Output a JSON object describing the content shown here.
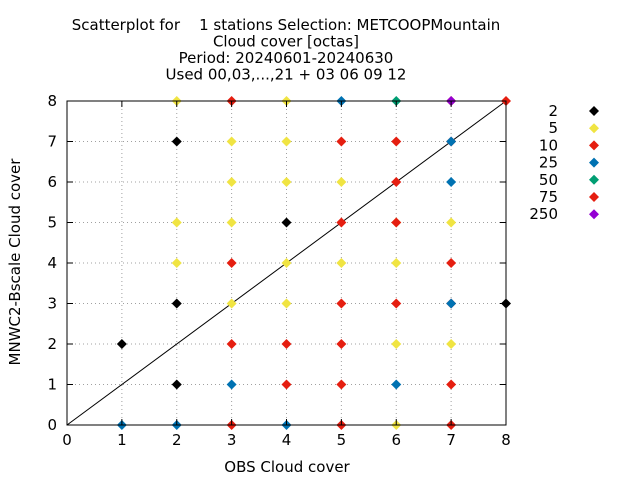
{
  "chart_data": {
    "type": "scatter",
    "title_lines": [
      "Scatterplot for    1 stations Selection: METCOOPMountain",
      "Cloud cover [octas]",
      "Period: 20240601-20240630",
      "Used 00,03,...,21 + 03 06 09 12"
    ],
    "xlabel": "OBS Cloud cover",
    "ylabel": "MNWC2-Bscale Cloud cover",
    "xlim": [
      0,
      8
    ],
    "ylim": [
      0,
      8
    ],
    "xticks": [
      "0",
      "1",
      "2",
      "3",
      "4",
      "5",
      "6",
      "7",
      "8"
    ],
    "yticks": [
      "0",
      "1",
      "2",
      "3",
      "4",
      "5",
      "6",
      "7",
      "8"
    ],
    "grid": true,
    "diagonal": true,
    "legend_position": "right",
    "series": [
      {
        "name": "2",
        "color": "#000000",
        "points": [
          [
            1,
            2
          ],
          [
            2,
            7
          ],
          [
            2,
            3
          ],
          [
            2,
            1
          ],
          [
            4,
            5
          ],
          [
            8,
            3
          ]
        ]
      },
      {
        "name": "5",
        "color": "#f0e442",
        "points": [
          [
            2,
            8
          ],
          [
            2,
            5
          ],
          [
            2,
            4
          ],
          [
            3,
            7
          ],
          [
            3,
            6
          ],
          [
            3,
            5
          ],
          [
            3,
            3
          ],
          [
            4,
            8
          ],
          [
            4,
            7
          ],
          [
            4,
            6
          ],
          [
            4,
            4
          ],
          [
            4,
            3
          ],
          [
            5,
            6
          ],
          [
            5,
            4
          ],
          [
            6,
            5
          ],
          [
            6,
            4
          ],
          [
            6,
            2
          ],
          [
            6,
            0
          ],
          [
            7,
            5
          ],
          [
            7,
            2
          ]
        ]
      },
      {
        "name": "10",
        "color": "#e51e10",
        "points": [
          [
            3,
            4
          ],
          [
            3,
            2
          ],
          [
            4,
            2
          ],
          [
            4,
            1
          ],
          [
            5,
            7
          ],
          [
            5,
            5
          ],
          [
            5,
            3
          ],
          [
            5,
            2
          ],
          [
            5,
            1
          ],
          [
            6,
            7
          ],
          [
            6,
            3
          ],
          [
            7,
            8
          ],
          [
            7,
            7
          ],
          [
            7,
            4
          ],
          [
            7,
            3
          ],
          [
            7,
            1
          ]
        ]
      },
      {
        "name": "25",
        "color": "#0072b2",
        "points": [
          [
            1,
            0
          ],
          [
            2,
            0
          ],
          [
            3,
            1
          ],
          [
            4,
            0
          ],
          [
            5,
            8
          ],
          [
            6,
            1
          ],
          [
            7,
            7
          ],
          [
            7,
            6
          ],
          [
            7,
            3
          ]
        ]
      },
      {
        "name": "50",
        "color": "#009e73",
        "points": [
          [
            6,
            8
          ]
        ]
      },
      {
        "name": "75",
        "color": "#e51e10",
        "points": [
          [
            3,
            8
          ],
          [
            3,
            0
          ],
          [
            5,
            0
          ],
          [
            6,
            6
          ],
          [
            6,
            5
          ],
          [
            7,
            0
          ],
          [
            8,
            8
          ]
        ]
      },
      {
        "name": "250",
        "color": "#9400d3",
        "points": [
          [
            7,
            8
          ]
        ]
      }
    ]
  }
}
